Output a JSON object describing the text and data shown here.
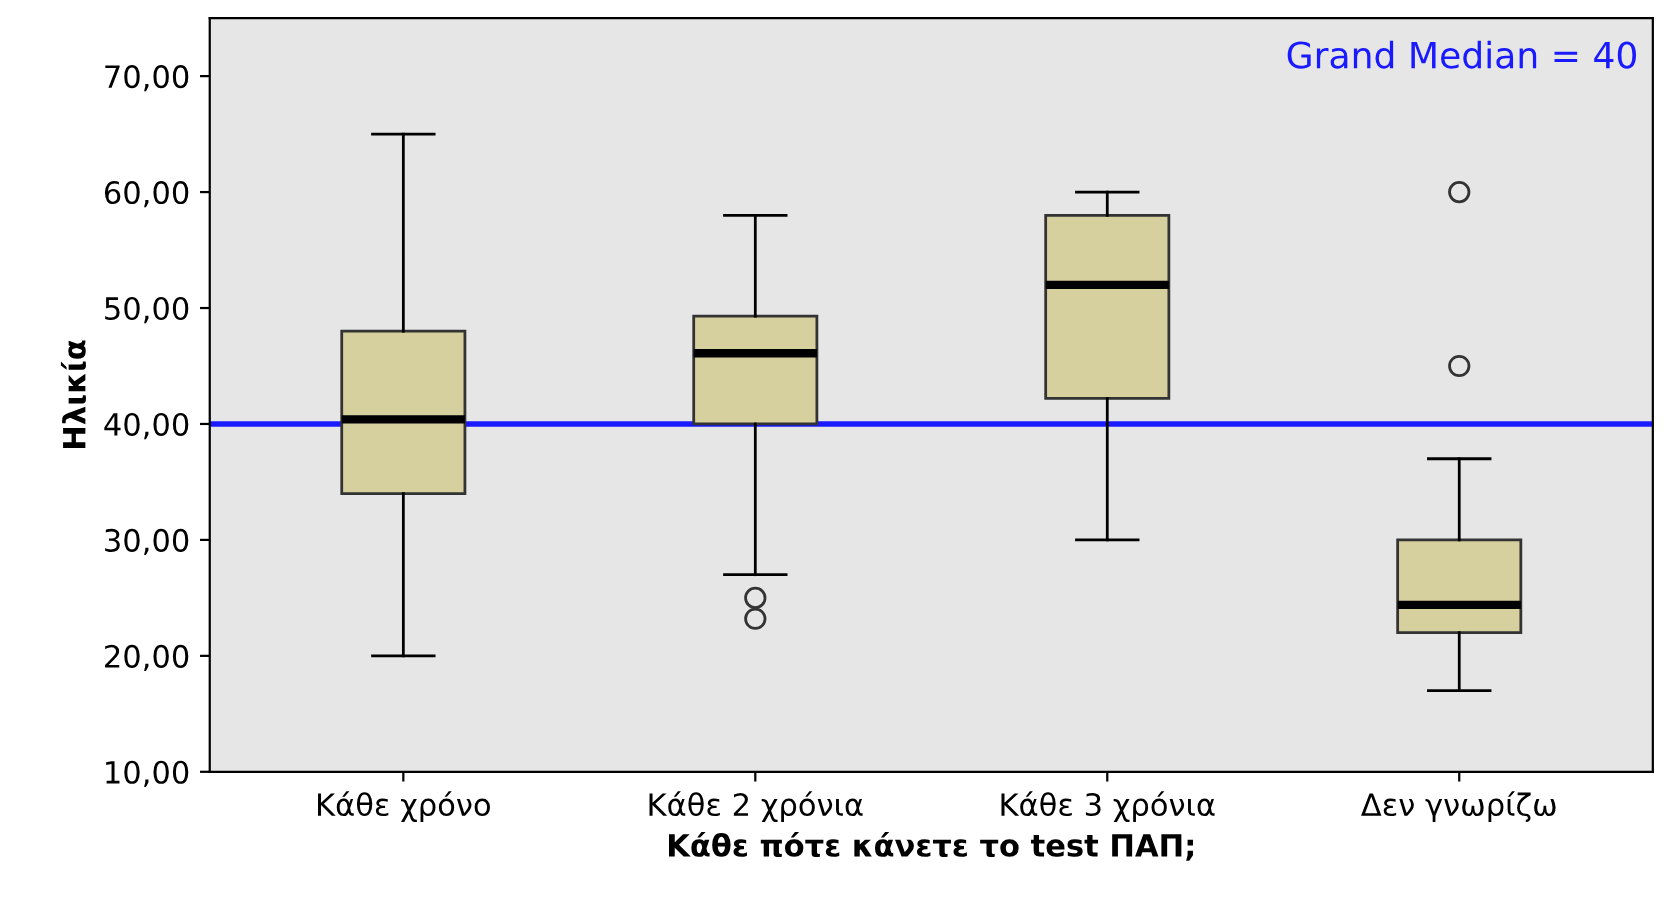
{
  "chart_data": {
    "type": "box",
    "xlabel": "Κάθε πότε κάνετε το test ΠΑΠ;",
    "ylabel": "Ηλικία",
    "categories": [
      "Κάθε χρόνο",
      "Κάθε 2 χρόνια",
      "Κάθε 3 χρόνια",
      "Δεν γνωρίζω"
    ],
    "color": "#d6cf9e",
    "boxes": [
      {
        "low": 20,
        "q1": 34,
        "median": 40.4,
        "q3": 48,
        "high": 65
      },
      {
        "low": 27,
        "q1": 40,
        "median": 46.1,
        "q3": 49.3,
        "high": 58,
        "outliers": [
          25,
          23.2
        ]
      },
      {
        "low": 30,
        "q1": 42.2,
        "median": 52,
        "q3": 58,
        "high": 60
      },
      {
        "low": 17,
        "q1": 22,
        "median": 24.4,
        "q3": 30,
        "high": 37,
        "outliers": [
          45,
          60
        ]
      }
    ],
    "ylim": [
      10,
      75
    ],
    "yticks": [
      {
        "value": 10,
        "label": "10,00"
      },
      {
        "value": 20,
        "label": "20,00"
      },
      {
        "value": 30,
        "label": "30,00"
      },
      {
        "value": 40,
        "label": "40,00"
      },
      {
        "value": 50,
        "label": "50,00"
      },
      {
        "value": 60,
        "label": "60,00"
      },
      {
        "value": 70,
        "label": "70,00"
      }
    ],
    "ref_lines": [
      {
        "axis": "y",
        "value": 40,
        "label": "Grand Median = 40",
        "color": "#1a1aff"
      }
    ],
    "grid": false
  }
}
